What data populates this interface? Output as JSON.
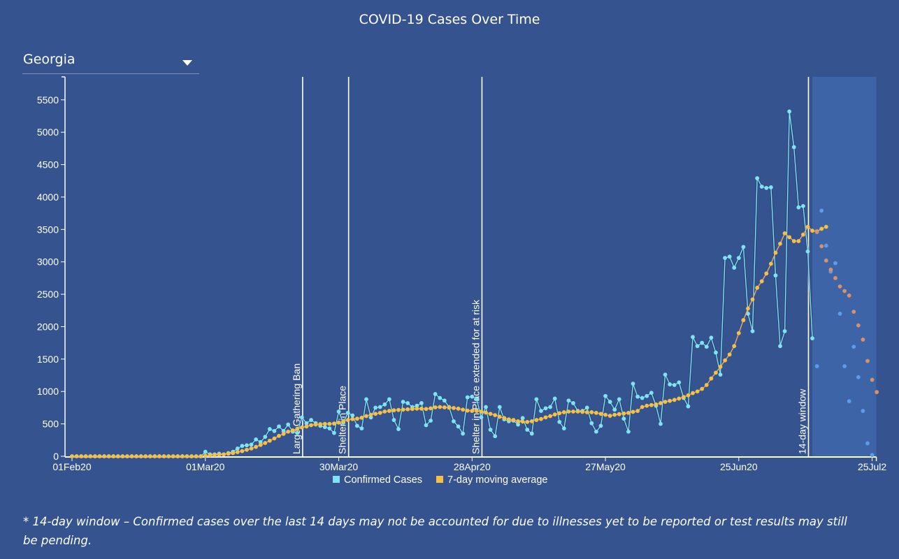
{
  "title": "COVID-19 Cases Over Time",
  "state_select": {
    "value": "Georgia",
    "icon": "caret-down-icon"
  },
  "footnote": "* 14-day window – Confirmed cases over the last 14 days may not be accounted for due to illnesses yet to be reported or test results may still be pending.",
  "colors": {
    "background": "#35548f",
    "confirmed": "#7fe3f5",
    "average": "#f5c043",
    "projection_confirmed": "#5b9ce8",
    "projection_average": "#d9916a",
    "window_shade": "#3c64a6"
  },
  "chart_data": {
    "type": "line",
    "title": "COVID-19 Cases Over Time",
    "xlabel": "",
    "ylabel": "",
    "x_start": "01Feb20",
    "ylim": [
      0,
      5800
    ],
    "yticks": [
      0,
      500,
      1000,
      1500,
      2000,
      2500,
      3000,
      3500,
      4000,
      4500,
      5000,
      5500
    ],
    "xticks": [
      {
        "day": 0,
        "label": "01Feb20"
      },
      {
        "day": 29,
        "label": "01Mar20"
      },
      {
        "day": 58,
        "label": "30Mar20"
      },
      {
        "day": 87,
        "label": "28Apr20"
      },
      {
        "day": 116,
        "label": "27May20"
      },
      {
        "day": 145,
        "label": "25Jun20"
      },
      {
        "day": 174,
        "label": "25Jul2"
      }
    ],
    "legend": [
      "Confirmed Cases",
      "7-day moving average"
    ],
    "legend_position": "bottom",
    "events": [
      {
        "day": 50,
        "label": "Large Gathering Ban"
      },
      {
        "day": 60,
        "label": "Shelter in Place"
      },
      {
        "day": 89,
        "label": "Shelter in Place extended for at risk"
      },
      {
        "day": 160,
        "label": "14-day window"
      }
    ],
    "series": [
      {
        "name": "Confirmed Cases",
        "values": [
          0,
          0,
          0,
          0,
          0,
          0,
          0,
          0,
          0,
          0,
          0,
          0,
          0,
          0,
          0,
          0,
          0,
          0,
          0,
          0,
          0,
          0,
          0,
          0,
          0,
          0,
          0,
          0,
          0,
          70,
          30,
          30,
          40,
          30,
          50,
          70,
          120,
          160,
          170,
          180,
          260,
          220,
          300,
          420,
          390,
          460,
          390,
          490,
          380,
          360,
          600,
          510,
          560,
          510,
          470,
          450,
          430,
          360,
          690,
          520,
          670,
          630,
          470,
          430,
          880,
          600,
          750,
          760,
          800,
          880,
          560,
          420,
          840,
          820,
          760,
          780,
          820,
          480,
          550,
          960,
          900,
          860,
          760,
          540,
          460,
          350,
          910,
          920,
          880,
          600,
          760,
          410,
          310,
          760,
          570,
          540,
          550,
          490,
          590,
          410,
          350,
          880,
          700,
          740,
          760,
          890,
          530,
          430,
          860,
          820,
          700,
          700,
          750,
          510,
          380,
          470,
          930,
          840,
          720,
          880,
          580,
          380,
          1120,
          920,
          900,
          930,
          980,
          780,
          500,
          1260,
          1110,
          1100,
          1140,
          900,
          770,
          1840,
          1700,
          1750,
          1690,
          1830,
          1600,
          1260,
          3060,
          3080,
          2910,
          3060,
          3230,
          2200,
          1930,
          4290,
          4160,
          4140,
          4150,
          2790,
          1700,
          1930,
          5320,
          4770,
          3840,
          3860,
          3160,
          1820
        ],
        "projection": [
          1390,
          3790,
          3250,
          2850,
          2980,
          2200,
          1390,
          850,
          1690,
          1220,
          700,
          200,
          20
        ]
      },
      {
        "name": "7-day moving average",
        "values": [
          0,
          0,
          0,
          0,
          0,
          0,
          0,
          0,
          0,
          0,
          0,
          0,
          0,
          0,
          0,
          0,
          0,
          0,
          0,
          0,
          0,
          0,
          0,
          0,
          0,
          0,
          0,
          0,
          0,
          10,
          15,
          20,
          25,
          30,
          40,
          50,
          65,
          80,
          100,
          120,
          145,
          175,
          205,
          240,
          275,
          315,
          345,
          380,
          400,
          425,
          445,
          460,
          480,
          490,
          495,
          500,
          500,
          505,
          520,
          540,
          560,
          575,
          580,
          595,
          620,
          640,
          655,
          670,
          690,
          700,
          710,
          715,
          720,
          725,
          730,
          735,
          735,
          730,
          740,
          755,
          760,
          755,
          750,
          745,
          735,
          720,
          705,
          700,
          700,
          690,
          675,
          655,
          635,
          610,
          590,
          570,
          560,
          540,
          535,
          530,
          540,
          560,
          575,
          600,
          620,
          645,
          665,
          680,
          690,
          690,
          690,
          685,
          680,
          680,
          670,
          655,
          640,
          625,
          640,
          650,
          660,
          670,
          685,
          700,
          760,
          780,
          790,
          800,
          820,
          840,
          855,
          870,
          890,
          915,
          940,
          975,
          1000,
          1040,
          1100,
          1200,
          1290,
          1380,
          1480,
          1570,
          1700,
          1900,
          2100,
          2280,
          2420,
          2600,
          2700,
          2820,
          2970,
          3140,
          3280,
          3440,
          3380,
          3320,
          3320,
          3420,
          3540,
          3480,
          3470,
          3510,
          3540
        ],
        "projection": [
          3460,
          3240,
          3020,
          2880,
          2750,
          2620,
          2550,
          2480,
          2230,
          2020,
          1800,
          1470,
          1180,
          990
        ]
      }
    ]
  }
}
